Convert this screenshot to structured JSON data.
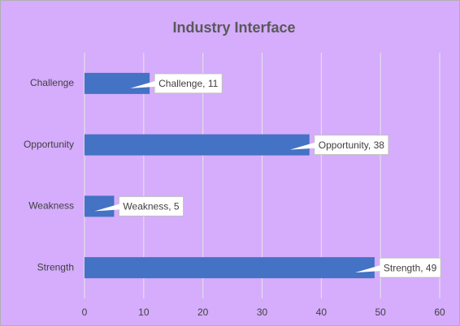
{
  "chart_data": {
    "type": "barh",
    "title": "Industry Interface",
    "categories": [
      "Challenge",
      "Opportunity",
      "Weakness",
      "Strength"
    ],
    "values": [
      11,
      38,
      5,
      49
    ],
    "value_labels": [
      "Challenge, 11",
      "Opportunity, 38",
      "Weakness, 5",
      "Strength, 49"
    ],
    "color": "#4472c4",
    "xlim": [
      0,
      60
    ],
    "xticks": [
      0,
      10,
      20,
      30,
      40,
      50,
      60
    ],
    "grid": true
  }
}
